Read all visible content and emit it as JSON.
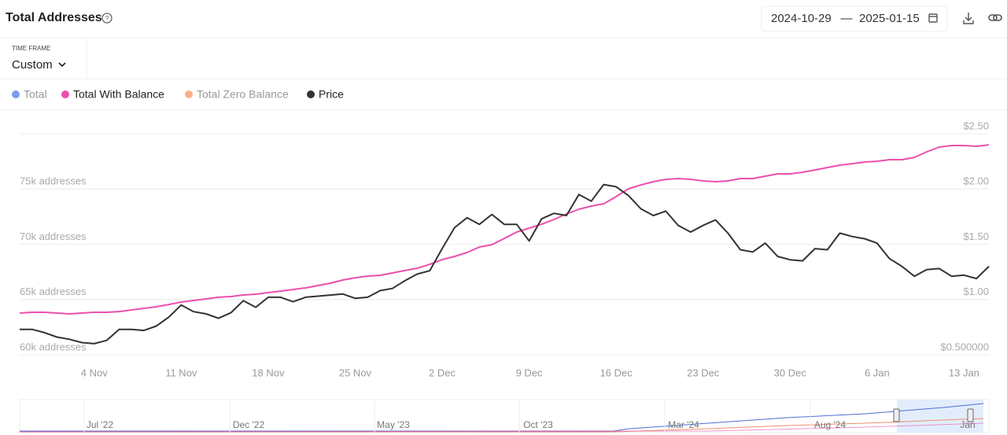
{
  "header": {
    "title": "Total Addresses",
    "date_start": "2024-10-29",
    "date_separator": "—",
    "date_end": "2025-01-15"
  },
  "timeframe": {
    "label": "TIME FRAME",
    "value": "Custom"
  },
  "chart_data": {
    "type": "line",
    "categories": [
      null,
      null,
      null,
      null,
      null,
      null,
      "4 Nov",
      null,
      null,
      null,
      null,
      null,
      null,
      "11 Nov",
      null,
      null,
      null,
      null,
      null,
      null,
      "18 Nov",
      null,
      null,
      null,
      null,
      null,
      null,
      "25 Nov",
      null,
      null,
      null,
      null,
      null,
      null,
      "2 Dec",
      null,
      null,
      null,
      null,
      null,
      null,
      "9 Dec",
      null,
      null,
      null,
      null,
      null,
      null,
      "16 Dec",
      null,
      null,
      null,
      null,
      null,
      null,
      "23 Dec",
      null,
      null,
      null,
      null,
      null,
      null,
      "30 Dec",
      null,
      null,
      null,
      null,
      null,
      null,
      "6 Jan",
      null,
      null,
      null,
      null,
      null,
      null,
      "13 Jan",
      null,
      null
    ],
    "series": [
      {
        "name": "Total",
        "color": "#7b9cf0",
        "visible": false
      },
      {
        "name": "Total With Balance",
        "color": "#ec4fae",
        "visible": true,
        "values": [
          63770,
          63840,
          63840,
          63770,
          63700,
          63770,
          63840,
          63840,
          63910,
          64060,
          64200,
          64340,
          64550,
          64770,
          64910,
          65050,
          65200,
          65270,
          65410,
          65480,
          65620,
          65760,
          65910,
          66050,
          66260,
          66480,
          66760,
          66970,
          67120,
          67190,
          67400,
          67620,
          67830,
          68180,
          68610,
          68900,
          69250,
          69750,
          69960,
          70530,
          71100,
          71460,
          71810,
          72240,
          72740,
          73170,
          73450,
          73660,
          74310,
          75020,
          75370,
          75660,
          75870,
          75940,
          75870,
          75730,
          75660,
          75730,
          75940,
          75940,
          76160,
          76370,
          76370,
          76510,
          76720,
          76940,
          77150,
          77290,
          77440,
          77510,
          77650,
          77650,
          77860,
          78360,
          78790,
          78930,
          78930,
          78860,
          79000
        ]
      },
      {
        "name": "Total Zero Balance",
        "color": "#f7b08c",
        "visible": false
      },
      {
        "name": "Price",
        "color": "#333333",
        "visible": true,
        "axis": "y2",
        "values": [
          0.73,
          0.73,
          0.7,
          0.66,
          0.64,
          0.61,
          0.6,
          0.63,
          0.73,
          0.73,
          0.72,
          0.76,
          0.84,
          0.95,
          0.89,
          0.87,
          0.83,
          0.88,
          0.99,
          0.93,
          1.02,
          1.02,
          0.98,
          1.02,
          1.03,
          1.04,
          1.05,
          1.01,
          1.02,
          1.08,
          1.1,
          1.17,
          1.23,
          1.26,
          1.46,
          1.65,
          1.74,
          1.68,
          1.77,
          1.68,
          1.68,
          1.53,
          1.73,
          1.78,
          1.76,
          1.95,
          1.89,
          2.04,
          2.02,
          1.94,
          1.82,
          1.76,
          1.8,
          1.67,
          1.61,
          1.67,
          1.72,
          1.6,
          1.45,
          1.43,
          1.51,
          1.39,
          1.36,
          1.35,
          1.46,
          1.45,
          1.6,
          1.57,
          1.55,
          1.51,
          1.37,
          1.3,
          1.21,
          1.27,
          1.28,
          1.21,
          1.22,
          1.19,
          1.3
        ]
      }
    ],
    "ylim": [
      60000,
      80000
    ],
    "yticks": [
      {
        "value": 60000,
        "label": "60k addresses"
      },
      {
        "value": 65000,
        "label": "65k addresses"
      },
      {
        "value": 70000,
        "label": "70k addresses"
      },
      {
        "value": 75000,
        "label": "75k addresses"
      }
    ],
    "y2lim": [
      0.5,
      2.5
    ],
    "y2ticks": [
      {
        "value": 0.5,
        "label": "$0.500000"
      },
      {
        "value": 1,
        "label": "$1.00"
      },
      {
        "value": 1.5,
        "label": "$1.50"
      },
      {
        "value": 2,
        "label": "$2.00"
      },
      {
        "value": 2.5,
        "label": "$2.50"
      }
    ],
    "grid": true
  },
  "navigator": {
    "labels": [
      "Jul '22",
      "Dec '22",
      "May '23",
      "Oct '23",
      "Mar '24",
      "Aug '24",
      "Jan"
    ]
  }
}
